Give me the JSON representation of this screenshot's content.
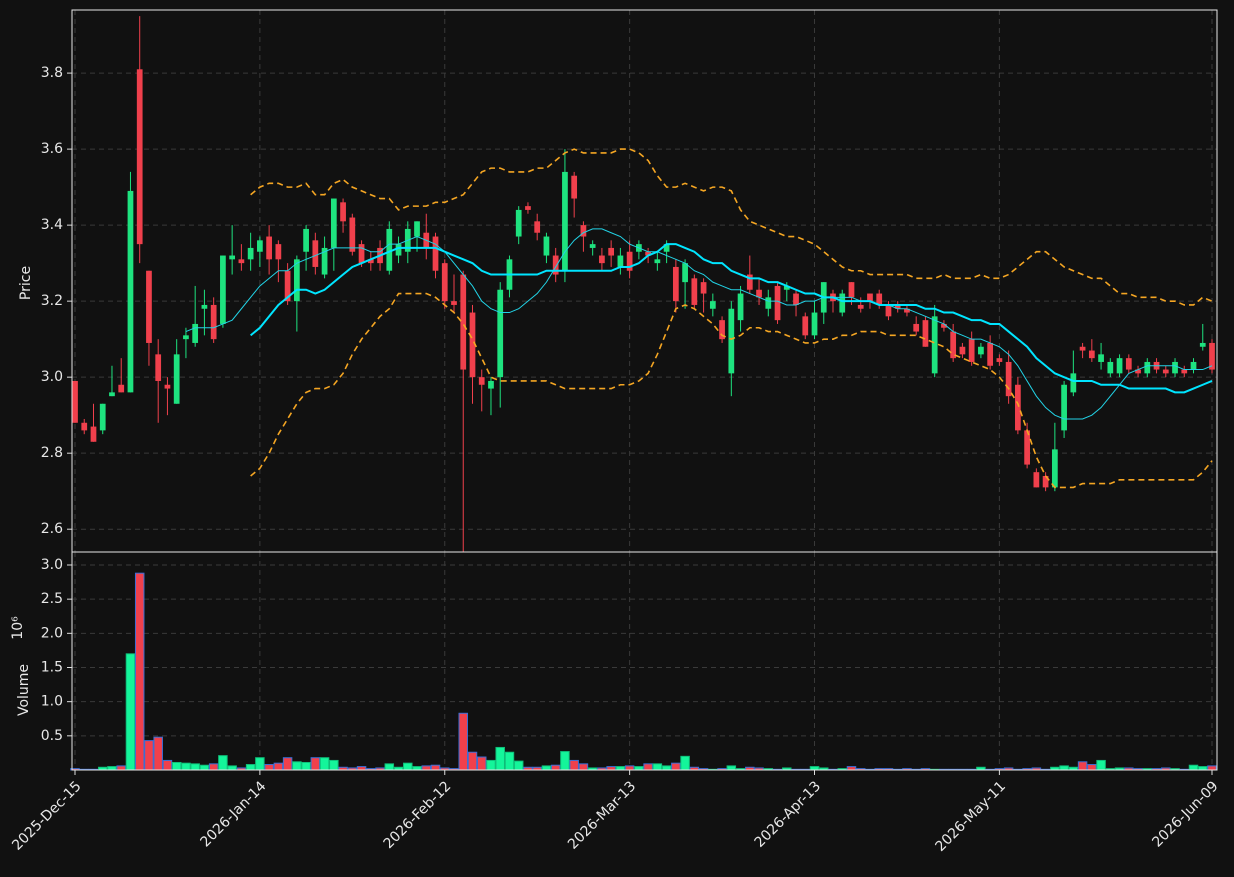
{
  "chart_data": {
    "type": "candlestick",
    "ylabel": "Price",
    "ylim": [
      2.54,
      3.966
    ],
    "yticks": [
      2.6,
      2.8,
      {
        "value": 3.0,
        "label": "3.0"
      },
      3.2,
      3.4,
      3.6,
      3.8
    ],
    "grid": true,
    "up_color": "#1ee37f",
    "down_color": "#f0404c",
    "categories": [
      "2025-Dec-15",
      null,
      null,
      null,
      null,
      null,
      null,
      null,
      null,
      null,
      null,
      null,
      null,
      null,
      null,
      null,
      null,
      null,
      null,
      null,
      "2026-Jan-14",
      null,
      null,
      null,
      null,
      null,
      null,
      null,
      null,
      null,
      null,
      null,
      null,
      null,
      null,
      null,
      null,
      null,
      null,
      null,
      "2026-Feb-12",
      null,
      null,
      null,
      null,
      null,
      null,
      null,
      null,
      null,
      null,
      null,
      null,
      null,
      null,
      null,
      null,
      null,
      null,
      null,
      "2026-Mar-13",
      null,
      null,
      null,
      null,
      null,
      null,
      null,
      null,
      null,
      null,
      null,
      null,
      null,
      null,
      null,
      null,
      null,
      null,
      null,
      "2026-Apr-13",
      null,
      null,
      null,
      null,
      null,
      null,
      null,
      null,
      null,
      null,
      null,
      null,
      null,
      null,
      null,
      null,
      null,
      null,
      null,
      "2026-May-11",
      null,
      null,
      null,
      null,
      null,
      null,
      null,
      null,
      null,
      null,
      null,
      null,
      null,
      null,
      null,
      null,
      null,
      null,
      null,
      null,
      null,
      null,
      "2026-Jun-09"
    ],
    "open": [
      2.99,
      2.88,
      2.87,
      2.86,
      2.95,
      2.98,
      2.96,
      3.81,
      3.28,
      3.06,
      2.98,
      2.93,
      3.1,
      3.09,
      3.18,
      3.19,
      3.14,
      3.31,
      3.31,
      3.31,
      3.33,
      3.37,
      3.35,
      3.28,
      3.2,
      3.33,
      3.36,
      3.27,
      3.34,
      3.46,
      3.42,
      3.35,
      3.31,
      3.34,
      3.28,
      3.32,
      3.33,
      3.37,
      3.38,
      3.37,
      3.3,
      3.2,
      3.27,
      3.17,
      3.0,
      2.97,
      3.0,
      3.23,
      3.37,
      3.45,
      3.41,
      3.32,
      3.32,
      3.28,
      3.53,
      3.4,
      3.34,
      3.32,
      3.34,
      3.29,
      3.33,
      3.33,
      3.33,
      3.3,
      3.33,
      3.29,
      3.25,
      3.26,
      3.25,
      3.18,
      3.15,
      3.01,
      3.15,
      3.27,
      3.23,
      3.18,
      3.24,
      3.23,
      3.22,
      3.16,
      3.11,
      3.17,
      3.22,
      3.17,
      3.25,
      3.19,
      3.22,
      3.22,
      3.19,
      3.19,
      3.18,
      3.14,
      3.15,
      3.01,
      3.14,
      3.12,
      3.08,
      3.1,
      3.06,
      3.09,
      3.05,
      3.04,
      2.98,
      2.86,
      2.75,
      2.74,
      2.71,
      2.86,
      2.96,
      3.08,
      3.07,
      3.04,
      3.01,
      3.01,
      3.05,
      3.02,
      3.01,
      3.04,
      3.02,
      3.01,
      3.02,
      3.02,
      3.08,
      3.09
    ],
    "high": [
      2.99,
      2.89,
      2.93,
      2.93,
      3.03,
      3.05,
      3.54,
      3.95,
      3.28,
      3.1,
      3.0,
      3.1,
      3.13,
      3.24,
      3.23,
      3.21,
      3.32,
      3.4,
      3.35,
      3.38,
      3.37,
      3.4,
      3.36,
      3.3,
      3.32,
      3.4,
      3.38,
      3.37,
      3.47,
      3.47,
      3.43,
      3.36,
      3.33,
      3.36,
      3.41,
      3.37,
      3.41,
      3.41,
      3.43,
      3.38,
      3.31,
      3.27,
      3.28,
      3.19,
      3.02,
      3.0,
      3.25,
      3.32,
      3.45,
      3.46,
      3.43,
      3.38,
      3.34,
      3.6,
      3.54,
      3.41,
      3.36,
      3.34,
      3.36,
      3.34,
      3.36,
      3.36,
      3.34,
      3.33,
      3.36,
      3.31,
      3.31,
      3.27,
      3.26,
      3.22,
      3.16,
      3.2,
      3.24,
      3.32,
      3.26,
      3.23,
      3.25,
      3.25,
      3.23,
      3.17,
      3.2,
      3.25,
      3.23,
      3.23,
      3.25,
      3.21,
      3.22,
      3.23,
      3.2,
      3.2,
      3.19,
      3.16,
      3.16,
      3.19,
      3.15,
      3.14,
      3.09,
      3.12,
      3.09,
      3.11,
      3.06,
      3.07,
      3.0,
      2.88,
      2.76,
      2.75,
      2.88,
      2.99,
      3.07,
      3.09,
      3.1,
      3.09,
      3.05,
      3.06,
      3.06,
      3.03,
      3.05,
      3.05,
      3.03,
      3.05,
      3.03,
      3.05,
      3.14,
      3.1
    ],
    "low": [
      2.88,
      2.85,
      2.83,
      2.85,
      2.95,
      2.96,
      2.96,
      3.3,
      3.03,
      2.88,
      2.9,
      2.93,
      3.05,
      3.08,
      3.11,
      3.09,
      3.13,
      3.27,
      3.28,
      3.28,
      3.29,
      3.27,
      3.25,
      3.19,
      3.12,
      3.28,
      3.27,
      3.26,
      3.28,
      3.38,
      3.32,
      3.29,
      3.28,
      3.28,
      3.27,
      3.3,
      3.3,
      3.33,
      3.31,
      3.26,
      3.18,
      3.17,
      2.54,
      2.93,
      2.91,
      2.9,
      2.92,
      3.21,
      3.35,
      3.43,
      3.36,
      3.3,
      3.25,
      3.25,
      3.42,
      3.33,
      3.32,
      3.28,
      3.29,
      3.27,
      3.26,
      3.31,
      3.3,
      3.28,
      3.3,
      3.17,
      3.18,
      3.18,
      3.17,
      3.16,
      3.09,
      2.95,
      3.12,
      3.22,
      3.19,
      3.16,
      3.14,
      3.2,
      3.16,
      3.1,
      3.1,
      3.14,
      3.17,
      3.16,
      3.19,
      3.17,
      3.18,
      3.18,
      3.15,
      3.17,
      3.16,
      3.11,
      3.08,
      3.0,
      3.12,
      3.04,
      3.05,
      3.03,
      3.05,
      3.02,
      3.03,
      2.93,
      2.85,
      2.76,
      2.71,
      2.7,
      2.7,
      2.84,
      2.95,
      3.05,
      3.04,
      3.02,
      3.0,
      3.0,
      3.01,
      3.0,
      3.0,
      3.01,
      3.0,
      3.0,
      3.0,
      3.01,
      3.07,
      3.01
    ],
    "close": [
      2.88,
      2.86,
      2.83,
      2.93,
      2.96,
      2.96,
      3.49,
      3.35,
      3.09,
      2.99,
      2.97,
      3.06,
      3.11,
      3.14,
      3.19,
      3.1,
      3.32,
      3.32,
      3.3,
      3.34,
      3.36,
      3.31,
      3.31,
      3.2,
      3.31,
      3.39,
      3.29,
      3.34,
      3.47,
      3.41,
      3.33,
      3.3,
      3.3,
      3.3,
      3.39,
      3.35,
      3.39,
      3.41,
      3.34,
      3.28,
      3.2,
      3.19,
      3.02,
      3.0,
      2.98,
      2.99,
      3.23,
      3.31,
      3.44,
      3.44,
      3.38,
      3.37,
      3.27,
      3.54,
      3.47,
      3.37,
      3.35,
      3.3,
      3.32,
      3.32,
      3.28,
      3.35,
      3.32,
      3.31,
      3.35,
      3.2,
      3.3,
      3.19,
      3.22,
      3.2,
      3.1,
      3.18,
      3.22,
      3.23,
      3.21,
      3.21,
      3.15,
      3.24,
      3.19,
      3.11,
      3.17,
      3.25,
      3.2,
      3.22,
      3.21,
      3.18,
      3.2,
      3.19,
      3.16,
      3.18,
      3.17,
      3.12,
      3.08,
      3.16,
      3.13,
      3.05,
      3.06,
      3.04,
      3.08,
      3.03,
      3.04,
      2.95,
      2.86,
      2.77,
      2.71,
      2.71,
      2.81,
      2.98,
      3.01,
      3.07,
      3.05,
      3.06,
      3.04,
      3.05,
      3.02,
      3.01,
      3.04,
      3.02,
      3.01,
      3.04,
      3.01,
      3.04,
      3.09,
      3.02
    ],
    "series": [
      {
        "color": "#22d3e6",
        "width": 1,
        "dashed": false,
        "values": [
          null,
          null,
          null,
          null,
          null,
          null,
          null,
          null,
          null,
          null,
          null,
          null,
          3.12,
          3.13,
          3.13,
          3.13,
          3.14,
          3.15,
          3.18,
          3.21,
          3.24,
          3.26,
          3.28,
          3.28,
          3.3,
          3.31,
          3.32,
          3.33,
          3.34,
          3.34,
          3.34,
          3.34,
          3.33,
          3.33,
          3.35,
          3.35,
          3.36,
          3.37,
          3.36,
          3.35,
          3.33,
          3.3,
          3.27,
          3.24,
          3.2,
          3.18,
          3.17,
          3.17,
          3.18,
          3.2,
          3.22,
          3.25,
          3.29,
          3.33,
          3.36,
          3.38,
          3.39,
          3.39,
          3.38,
          3.37,
          3.35,
          3.34,
          3.33,
          3.33,
          3.32,
          3.31,
          3.3,
          3.28,
          3.27,
          3.25,
          3.24,
          3.23,
          3.23,
          3.22,
          3.21,
          3.2,
          3.2,
          3.19,
          3.19,
          3.2,
          3.2,
          3.21,
          3.21,
          3.21,
          3.21,
          3.2,
          3.2,
          3.19,
          3.19,
          3.18,
          3.18,
          3.17,
          3.16,
          3.15,
          3.14,
          3.12,
          3.11,
          3.1,
          3.1,
          3.09,
          3.08,
          3.06,
          3.03,
          2.99,
          2.95,
          2.92,
          2.9,
          2.89,
          2.89,
          2.89,
          2.9,
          2.92,
          2.95,
          2.98,
          3.01,
          3.02,
          3.03,
          3.03,
          3.03,
          3.03,
          3.02,
          3.02,
          3.02,
          3.03
        ]
      },
      {
        "color": "#00e5ff",
        "width": 2,
        "dashed": false,
        "values": [
          null,
          null,
          null,
          null,
          null,
          null,
          null,
          null,
          null,
          null,
          null,
          null,
          null,
          null,
          null,
          null,
          null,
          null,
          null,
          3.11,
          3.13,
          3.16,
          3.19,
          3.21,
          3.23,
          3.23,
          3.22,
          3.23,
          3.25,
          3.27,
          3.29,
          3.3,
          3.31,
          3.32,
          3.33,
          3.34,
          3.34,
          3.34,
          3.34,
          3.34,
          3.33,
          3.32,
          3.31,
          3.3,
          3.28,
          3.27,
          3.27,
          3.27,
          3.27,
          3.27,
          3.27,
          3.28,
          3.28,
          3.28,
          3.28,
          3.28,
          3.28,
          3.28,
          3.28,
          3.29,
          3.29,
          3.3,
          3.32,
          3.33,
          3.35,
          3.35,
          3.34,
          3.33,
          3.31,
          3.3,
          3.3,
          3.28,
          3.27,
          3.26,
          3.26,
          3.25,
          3.25,
          3.24,
          3.23,
          3.22,
          3.22,
          3.21,
          3.21,
          3.2,
          3.2,
          3.2,
          3.2,
          3.19,
          3.19,
          3.19,
          3.19,
          3.19,
          3.18,
          3.18,
          3.17,
          3.17,
          3.16,
          3.15,
          3.15,
          3.14,
          3.14,
          3.12,
          3.1,
          3.08,
          3.05,
          3.03,
          3.01,
          3.0,
          2.99,
          2.99,
          2.99,
          2.98,
          2.98,
          2.98,
          2.97,
          2.97,
          2.97,
          2.97,
          2.97,
          2.96,
          2.96,
          2.97,
          2.98,
          2.99
        ]
      },
      {
        "color": "#f5a623",
        "width": 1.6,
        "dashed": true,
        "values": [
          null,
          null,
          null,
          null,
          null,
          null,
          null,
          null,
          null,
          null,
          null,
          null,
          null,
          null,
          null,
          null,
          null,
          null,
          null,
          3.48,
          3.5,
          3.51,
          3.51,
          3.5,
          3.5,
          3.51,
          3.48,
          3.48,
          3.51,
          3.52,
          3.5,
          3.49,
          3.48,
          3.47,
          3.47,
          3.44,
          3.45,
          3.45,
          3.45,
          3.46,
          3.46,
          3.47,
          3.48,
          3.51,
          3.54,
          3.55,
          3.55,
          3.54,
          3.54,
          3.54,
          3.55,
          3.55,
          3.57,
          3.59,
          3.6,
          3.59,
          3.59,
          3.59,
          3.59,
          3.6,
          3.6,
          3.59,
          3.57,
          3.53,
          3.5,
          3.5,
          3.51,
          3.5,
          3.49,
          3.5,
          3.5,
          3.49,
          3.44,
          3.41,
          3.4,
          3.39,
          3.38,
          3.37,
          3.37,
          3.36,
          3.35,
          3.33,
          3.31,
          3.29,
          3.28,
          3.28,
          3.27,
          3.27,
          3.27,
          3.27,
          3.27,
          3.26,
          3.26,
          3.26,
          3.27,
          3.26,
          3.26,
          3.26,
          3.27,
          3.26,
          3.26,
          3.27,
          3.29,
          3.31,
          3.33,
          3.33,
          3.31,
          3.29,
          3.28,
          3.27,
          3.26,
          3.26,
          3.24,
          3.22,
          3.22,
          3.21,
          3.21,
          3.21,
          3.2,
          3.2,
          3.19,
          3.19,
          3.21,
          3.2
        ]
      },
      {
        "color": "#f5a623",
        "width": 1.6,
        "dashed": true,
        "values": [
          null,
          null,
          null,
          null,
          null,
          null,
          null,
          null,
          null,
          null,
          null,
          null,
          null,
          null,
          null,
          null,
          null,
          null,
          null,
          2.74,
          2.76,
          2.8,
          2.85,
          2.89,
          2.93,
          2.96,
          2.97,
          2.97,
          2.98,
          3.01,
          3.06,
          3.1,
          3.13,
          3.16,
          3.18,
          3.22,
          3.22,
          3.22,
          3.22,
          3.21,
          3.19,
          3.17,
          3.14,
          3.1,
          3.05,
          3.0,
          2.99,
          2.99,
          2.99,
          2.99,
          2.99,
          2.99,
          2.98,
          2.97,
          2.97,
          2.97,
          2.97,
          2.97,
          2.97,
          2.98,
          2.98,
          2.99,
          3.01,
          3.06,
          3.12,
          3.18,
          3.19,
          3.18,
          3.16,
          3.14,
          3.11,
          3.1,
          3.11,
          3.13,
          3.13,
          3.12,
          3.12,
          3.11,
          3.1,
          3.09,
          3.09,
          3.1,
          3.1,
          3.11,
          3.11,
          3.12,
          3.12,
          3.12,
          3.11,
          3.11,
          3.11,
          3.11,
          3.1,
          3.09,
          3.08,
          3.06,
          3.05,
          3.04,
          3.03,
          3.02,
          3.0,
          2.97,
          2.93,
          2.86,
          2.79,
          2.74,
          2.71,
          2.71,
          2.71,
          2.72,
          2.72,
          2.72,
          2.72,
          2.73,
          2.73,
          2.73,
          2.73,
          2.73,
          2.73,
          2.73,
          2.73,
          2.73,
          2.75,
          2.78
        ]
      }
    ],
    "volume": {
      "ylabel": "Volume",
      "offset_text": "10⁶",
      "ylim": [
        0,
        3.19
      ],
      "yticks": [
        0.5,
        {
          "value": 1.0,
          "label": "1.0"
        },
        1.5,
        {
          "value": 2.0,
          "label": "2.0"
        },
        2.5,
        {
          "value": 3.0,
          "label": "3.0"
        }
      ],
      "up_color": "#14f59a",
      "down_color": "#f0404c",
      "down_edge": "#3b6fd6",
      "values": [
        0.02,
        0.01,
        0.01,
        0.04,
        0.05,
        0.06,
        1.7,
        2.88,
        0.43,
        0.48,
        0.14,
        0.11,
        0.1,
        0.09,
        0.07,
        0.09,
        0.21,
        0.06,
        0.03,
        0.08,
        0.18,
        0.08,
        0.1,
        0.18,
        0.12,
        0.11,
        0.18,
        0.18,
        0.14,
        0.04,
        0.03,
        0.05,
        0.02,
        0.03,
        0.09,
        0.04,
        0.1,
        0.05,
        0.06,
        0.07,
        0.03,
        0.02,
        0.83,
        0.26,
        0.19,
        0.14,
        0.33,
        0.26,
        0.13,
        0.04,
        0.04,
        0.06,
        0.07,
        0.27,
        0.14,
        0.09,
        0.03,
        0.03,
        0.05,
        0.05,
        0.06,
        0.05,
        0.09,
        0.09,
        0.06,
        0.1,
        0.2,
        0.04,
        0.02,
        0.01,
        0.02,
        0.06,
        0.02,
        0.04,
        0.03,
        0.02,
        0.01,
        0.03,
        0.01,
        0.01,
        0.05,
        0.03,
        0.01,
        0.02,
        0.05,
        0.02,
        0.01,
        0.02,
        0.02,
        0.01,
        0.02,
        0.01,
        0.02,
        0.01,
        0.01,
        0.01,
        0.01,
        0.01,
        0.04,
        0.01,
        0.02,
        0.03,
        0.01,
        0.02,
        0.03,
        0.01,
        0.04,
        0.06,
        0.04,
        0.12,
        0.08,
        0.14,
        0.02,
        0.03,
        0.03,
        0.02,
        0.02,
        0.02,
        0.03,
        0.02,
        0.01,
        0.07,
        0.05,
        0.06
      ]
    }
  }
}
